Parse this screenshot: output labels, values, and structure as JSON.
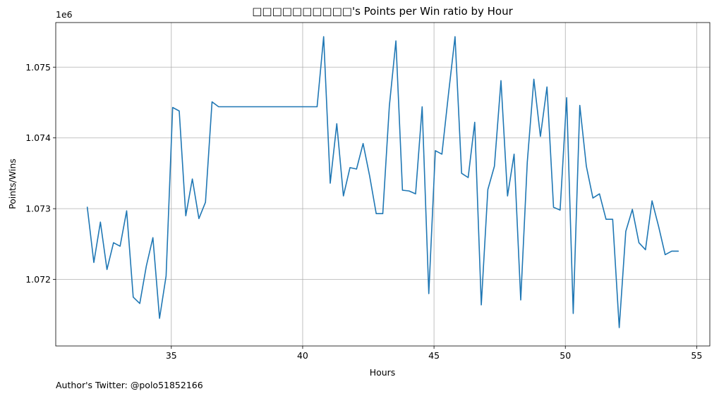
{
  "chart_data": {
    "type": "line",
    "title": "□□□□□□□□□□'s Points per Win ratio by Hour",
    "xlabel": "Hours",
    "ylabel": "Points/Wins",
    "y_offset_label": "1e6",
    "y_scale_factor": 1000000,
    "xlim": [
      30.6,
      55.5
    ],
    "ylim": [
      1.07106,
      1.07563
    ],
    "x_ticks": [
      35,
      40,
      45,
      50,
      55
    ],
    "x_tick_labels": [
      "35",
      "40",
      "45",
      "50",
      "55"
    ],
    "y_ticks": [
      1.072,
      1.073,
      1.074,
      1.075
    ],
    "y_tick_labels": [
      "1.072",
      "1.073",
      "1.074",
      "1.075"
    ],
    "grid": true,
    "color": "#1f77b4",
    "series": [
      {
        "x": [
          31.8,
          32.05,
          32.3,
          32.55,
          32.8,
          33.05,
          33.3,
          33.55,
          33.8,
          34.05,
          34.3,
          34.55,
          34.8,
          35.05,
          35.3,
          35.55,
          35.8,
          36.05,
          36.3,
          36.55,
          36.8,
          40.55,
          40.8,
          41.05,
          41.3,
          41.55,
          41.8,
          42.05,
          42.3,
          42.55,
          42.8,
          43.05,
          43.3,
          43.55,
          43.8,
          44.05,
          44.3,
          44.55,
          44.8,
          45.05,
          45.3,
          45.55,
          45.8,
          46.05,
          46.3,
          46.55,
          46.8,
          47.05,
          47.3,
          47.55,
          47.8,
          48.05,
          48.3,
          48.55,
          48.8,
          49.05,
          49.3,
          49.55,
          49.8,
          50.05,
          50.3,
          50.55,
          50.8,
          51.05,
          51.3,
          51.55,
          51.8,
          52.05,
          52.3,
          52.55,
          52.8,
          53.05,
          53.3,
          53.55,
          53.8,
          54.05,
          54.3
        ],
        "y": [
          1.07302,
          1.07224,
          1.07281,
          1.07214,
          1.07252,
          1.07247,
          1.07297,
          1.07175,
          1.07166,
          1.07219,
          1.07259,
          1.07145,
          1.07205,
          1.07443,
          1.07438,
          1.0729,
          1.07342,
          1.07286,
          1.07309,
          1.07451,
          1.07444,
          1.07444,
          1.07543,
          1.07336,
          1.0742,
          1.07318,
          1.07358,
          1.07356,
          1.07392,
          1.07346,
          1.07293,
          1.07293,
          1.07445,
          1.07537,
          1.07326,
          1.07325,
          1.07321,
          1.07444,
          1.0718,
          1.07382,
          1.07377,
          1.07462,
          1.07543,
          1.0735,
          1.07344,
          1.07422,
          1.07164,
          1.07327,
          1.0736,
          1.07481,
          1.07318,
          1.07377,
          1.07171,
          1.07366,
          1.07483,
          1.07402,
          1.07472,
          1.07302,
          1.07298,
          1.07457,
          1.07152,
          1.07446,
          1.0736,
          1.07315,
          1.07321,
          1.07285,
          1.07285,
          1.07132,
          1.07268,
          1.07299,
          1.07252,
          1.07242,
          1.07311,
          1.07275,
          1.07235,
          1.0724,
          1.0724
        ]
      }
    ]
  },
  "footer": {
    "author_text": "Author's Twitter: @polo51852166"
  }
}
